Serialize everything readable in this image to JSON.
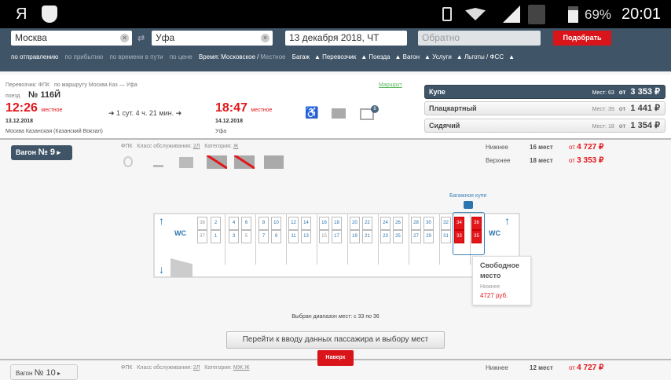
{
  "status_bar": {
    "app_icon": "Я",
    "shield_icon": "drweb-spider-icon",
    "battery": "69%",
    "time": "20:01",
    "icons": [
      "vibrate-icon",
      "wifi-icon",
      "signal-icon",
      "no-sim-icon",
      "battery-icon"
    ]
  },
  "search": {
    "from": "Москва",
    "to": "Уфа",
    "date": "13 декабря 2018, ЧТ",
    "return_placeholder": "Обратно",
    "submit": "Подобрать",
    "sort": [
      "по отправлению",
      "по прибытию",
      "по времени в пути",
      "по цене"
    ],
    "time_label": "Время:",
    "time_moscow": "Московское",
    "time_sep": "/",
    "time_local": "Местное",
    "filters": [
      "Багаж",
      "Перевозчик",
      "Поезда",
      "Вагон",
      "Услуги",
      "Льготы / ФСС"
    ]
  },
  "train": {
    "carrier": "Перевозчик: ФПК",
    "route": "по маршруту Москва Каз — Уфа",
    "route_link": "Маршрут",
    "train_label": "поезд",
    "number": "№ 116Й",
    "dep_time": "12:26",
    "dep_tz": "местное",
    "dep_date": "13.12.2018",
    "dep_station": "Москва Казанская (Казанский Вокзал)",
    "duration": "1 сут. 4 ч. 21 мин.",
    "arr_time": "18:47",
    "arr_tz": "местное",
    "arr_date": "14.12.2018",
    "arr_station": "Уфа",
    "badge": "8"
  },
  "classes": [
    {
      "name": "Купе",
      "seats": "Мест: 63",
      "from": "от",
      "price": "3 353 ₽"
    },
    {
      "name": "Плацкартный",
      "seats": "Мест: 39",
      "from": "от",
      "price": "1 441 ₽"
    },
    {
      "name": "Сидячий",
      "seats": "Мест: 18",
      "from": "от",
      "price": "1 354 ₽"
    }
  ],
  "car9": {
    "button": "Вагон",
    "number": "№ 9",
    "carrier": "ФПК",
    "service_label": "Класс обслуживания:",
    "service": "2Л",
    "cat_label": "Категория:",
    "cat": "Ж",
    "prices": [
      {
        "type": "Нижнее",
        "count": "16 мест",
        "from": "от",
        "price": "4 727 ₽"
      },
      {
        "type": "Верхнее",
        "count": "18 мест",
        "from": "от",
        "price": "3 353 ₽"
      }
    ],
    "luggage": "Багажное купе",
    "wc": "WC",
    "seats": [
      [
        "38",
        "occ"
      ],
      [
        "37",
        "occ"
      ],
      [
        "2",
        "free"
      ],
      [
        "1",
        "free"
      ],
      [
        "4",
        "free"
      ],
      [
        "3",
        "free"
      ],
      [
        "6",
        "free"
      ],
      [
        "5",
        "occ"
      ],
      [
        "8",
        "free"
      ],
      [
        "7",
        "free"
      ],
      [
        "10",
        "free"
      ],
      [
        "9",
        "free"
      ],
      [
        "12",
        "free"
      ],
      [
        "11",
        "free"
      ],
      [
        "14",
        "free"
      ],
      [
        "13",
        "free"
      ],
      [
        "16",
        "free"
      ],
      [
        "15",
        "occ"
      ],
      [
        "18",
        "free"
      ],
      [
        "17",
        "free"
      ],
      [
        "20",
        "free"
      ],
      [
        "19",
        "free"
      ],
      [
        "22",
        "free"
      ],
      [
        "21",
        "free"
      ],
      [
        "24",
        "free"
      ],
      [
        "23",
        "free"
      ],
      [
        "26",
        "free"
      ],
      [
        "25",
        "free"
      ],
      [
        "28",
        "free"
      ],
      [
        "27",
        "free"
      ],
      [
        "30",
        "free"
      ],
      [
        "29",
        "free"
      ],
      [
        "32",
        "free"
      ],
      [
        "31",
        "free"
      ],
      [
        "34",
        "sel"
      ],
      [
        "33",
        "sel"
      ],
      [
        "36",
        "sel"
      ],
      [
        "35",
        "sel"
      ]
    ],
    "tooltip": {
      "title": "Свободное место",
      "type": "Нижнее",
      "price": "4727 руб."
    },
    "range": "Выбран диапазон мест: с 33 по 36",
    "continue": "Перейти к вводу данных пассажира и выбору мест"
  },
  "top_button": "Наверх",
  "car10": {
    "button": "Вагон",
    "number": "№ 10",
    "carrier": "ФПК",
    "service_label": "Класс обслуживания:",
    "service": "2Л",
    "cat_label": "Категория:",
    "cat": "МЖ Ж",
    "type": "Нижнее",
    "count": "12 мест",
    "from": "от",
    "price": "4 727 ₽"
  },
  "colors": {
    "accent": "#e3161b",
    "header": "#3f5467",
    "seat_blue": "#2a74b0"
  }
}
